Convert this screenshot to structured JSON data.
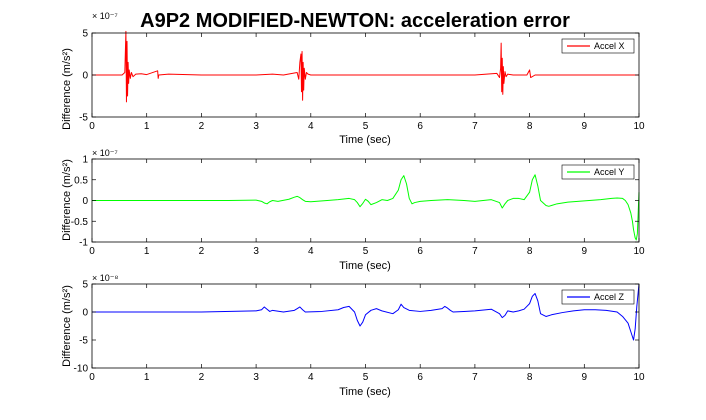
{
  "figure": {
    "title": "A9P2 MODIFIED-NEWTON: acceleration error"
  },
  "chart_data": [
    {
      "type": "line",
      "xlabel": "Time (sec)",
      "ylabel": "Difference (m/s²)",
      "exponent": "× 10⁻⁷",
      "xlim": [
        0,
        10
      ],
      "ylim": [
        -5,
        5
      ],
      "xticks": [
        0,
        1,
        2,
        3,
        4,
        5,
        6,
        7,
        8,
        9,
        10
      ],
      "yticks": [
        -5,
        0,
        5
      ],
      "legend_position": "top-right",
      "series": [
        {
          "name": "Accel X",
          "color": "#ff0000",
          "x": [
            0,
            0.55,
            0.6,
            0.62,
            0.63,
            0.64,
            0.65,
            0.66,
            0.67,
            0.68,
            0.7,
            0.72,
            0.75,
            0.8,
            0.9,
            1.0,
            1.2,
            1.21,
            1.22,
            1.4,
            2.0,
            2.5,
            3.0,
            3.3,
            3.5,
            3.75,
            3.78,
            3.8,
            3.82,
            3.83,
            3.84,
            3.85,
            3.86,
            3.87,
            3.88,
            3.9,
            3.92,
            3.95,
            4.0,
            4.2,
            5.0,
            6.0,
            7.0,
            7.4,
            7.45,
            7.47,
            7.48,
            7.49,
            7.5,
            7.51,
            7.52,
            7.53,
            7.55,
            7.57,
            7.6,
            7.7,
            7.95,
            8.0,
            8.02,
            8.1,
            8.5,
            9.0,
            9.5,
            10
          ],
          "y": [
            0,
            0,
            0.3,
            5.2,
            -3.2,
            4.0,
            -2.5,
            1.5,
            -1.0,
            0.6,
            -0.4,
            0.3,
            -0.2,
            0.1,
            0.15,
            0.05,
            0.5,
            -0.4,
            0.0,
            0.1,
            0,
            0,
            0,
            0.1,
            0,
            0.3,
            -0.5,
            1.5,
            2.5,
            -2.0,
            2.8,
            -3.0,
            1.5,
            -1.8,
            0.8,
            -0.5,
            0.3,
            0.1,
            0,
            0,
            0,
            0,
            0,
            0.2,
            -0.3,
            0.8,
            3.8,
            -2.0,
            2.0,
            -2.3,
            1.0,
            -1.0,
            0.4,
            -0.2,
            0.1,
            0,
            0,
            0.6,
            -0.3,
            0,
            0,
            0,
            0,
            0
          ]
        }
      ]
    },
    {
      "type": "line",
      "xlabel": "Time (sec)",
      "ylabel": "Difference (m/s²)",
      "exponent": "× 10⁻⁷",
      "xlim": [
        0,
        10
      ],
      "ylim": [
        -1,
        1
      ],
      "xticks": [
        0,
        1,
        2,
        3,
        4,
        5,
        6,
        7,
        8,
        9,
        10
      ],
      "yticks": [
        -1,
        -0.5,
        0,
        0.5,
        1
      ],
      "legend_position": "top-right",
      "series": [
        {
          "name": "Accel Y",
          "color": "#00ff00",
          "x": [
            0,
            1,
            2,
            2.5,
            3.0,
            3.1,
            3.15,
            3.2,
            3.25,
            3.3,
            3.4,
            3.6,
            3.7,
            3.75,
            3.8,
            3.85,
            3.9,
            4.0,
            4.3,
            4.5,
            4.7,
            4.8,
            4.85,
            4.9,
            4.95,
            5.0,
            5.05,
            5.1,
            5.2,
            5.3,
            5.4,
            5.5,
            5.6,
            5.65,
            5.7,
            5.75,
            5.8,
            5.85,
            5.9,
            6.0,
            6.2,
            6.5,
            6.8,
            7.0,
            7.3,
            7.45,
            7.5,
            7.55,
            7.6,
            7.7,
            7.8,
            7.9,
            8.0,
            8.05,
            8.1,
            8.15,
            8.2,
            8.3,
            8.35,
            8.4,
            8.5,
            8.7,
            9.0,
            9.3,
            9.5,
            9.6,
            9.7,
            9.75,
            9.8,
            9.85,
            9.88,
            9.9,
            9.93,
            9.95,
            9.97,
            10.0
          ],
          "y": [
            0,
            0,
            0,
            0,
            0.01,
            -0.02,
            -0.06,
            -0.08,
            -0.03,
            0,
            -0.02,
            0.03,
            0.08,
            0.1,
            0.07,
            0.02,
            -0.02,
            -0.03,
            0,
            0.02,
            0.05,
            0.02,
            -0.05,
            -0.15,
            -0.07,
            0.03,
            -0.02,
            -0.1,
            -0.05,
            0.02,
            0.0,
            0.05,
            0.25,
            0.5,
            0.6,
            0.4,
            0.05,
            -0.08,
            -0.05,
            -0.02,
            0,
            0.02,
            0.0,
            -0.02,
            0.02,
            -0.05,
            -0.18,
            -0.08,
            0.0,
            0.05,
            0.05,
            0.02,
            0.2,
            0.5,
            0.62,
            0.35,
            0.0,
            -0.12,
            -0.14,
            -0.12,
            -0.08,
            -0.04,
            -0.01,
            0.02,
            0.05,
            0.06,
            0.05,
            0.0,
            -0.1,
            -0.3,
            -0.5,
            -0.7,
            -0.9,
            -0.95,
            -0.8,
            0.2
          ]
        }
      ]
    },
    {
      "type": "line",
      "xlabel": "Time (sec)",
      "ylabel": "Difference (m/s²)",
      "exponent": "× 10⁻⁸",
      "xlim": [
        0,
        10
      ],
      "ylim": [
        -10,
        5
      ],
      "xticks": [
        0,
        1,
        2,
        3,
        4,
        5,
        6,
        7,
        8,
        9,
        10
      ],
      "yticks": [
        -10,
        -5,
        0,
        5
      ],
      "legend_position": "top-right",
      "series": [
        {
          "name": "Accel Z",
          "color": "#0000ff",
          "x": [
            0,
            1,
            2,
            3.0,
            3.1,
            3.15,
            3.2,
            3.25,
            3.3,
            3.5,
            3.7,
            3.75,
            3.8,
            3.85,
            3.9,
            4.2,
            4.5,
            4.6,
            4.7,
            4.8,
            4.85,
            4.9,
            4.95,
            5.0,
            5.1,
            5.2,
            5.3,
            5.5,
            5.6,
            5.65,
            5.7,
            5.8,
            6.0,
            6.2,
            6.4,
            6.45,
            6.5,
            6.55,
            6.6,
            6.8,
            7.0,
            7.3,
            7.45,
            7.5,
            7.55,
            7.6,
            7.7,
            7.8,
            7.9,
            8.0,
            8.05,
            8.1,
            8.15,
            8.2,
            8.3,
            8.4,
            8.6,
            8.8,
            9.0,
            9.2,
            9.4,
            9.6,
            9.7,
            9.8,
            9.85,
            9.9,
            9.93,
            9.96,
            10.0
          ],
          "y": [
            0,
            0,
            0,
            0.2,
            0.4,
            0.9,
            0.5,
            0.1,
            0.3,
            0.0,
            0.3,
            0.6,
            0.9,
            0.4,
            0.0,
            0.1,
            0.4,
            0.8,
            1.0,
            0.0,
            -1.5,
            -2.5,
            -1.8,
            -0.5,
            0.3,
            0.6,
            0.2,
            -0.3,
            0.4,
            1.4,
            0.8,
            0.3,
            0.1,
            0.3,
            0.6,
            1.0,
            0.7,
            0.3,
            0.0,
            0.1,
            0.2,
            0.5,
            -0.3,
            -1.0,
            -0.6,
            0.2,
            0.0,
            0.2,
            0.5,
            1.5,
            2.8,
            3.3,
            2.0,
            -0.3,
            -0.8,
            -0.5,
            -0.1,
            0.2,
            0.4,
            0.4,
            0.3,
            0.0,
            -0.8,
            -2.0,
            -3.5,
            -5.0,
            -3.0,
            1.0,
            5.0
          ]
        }
      ]
    }
  ]
}
